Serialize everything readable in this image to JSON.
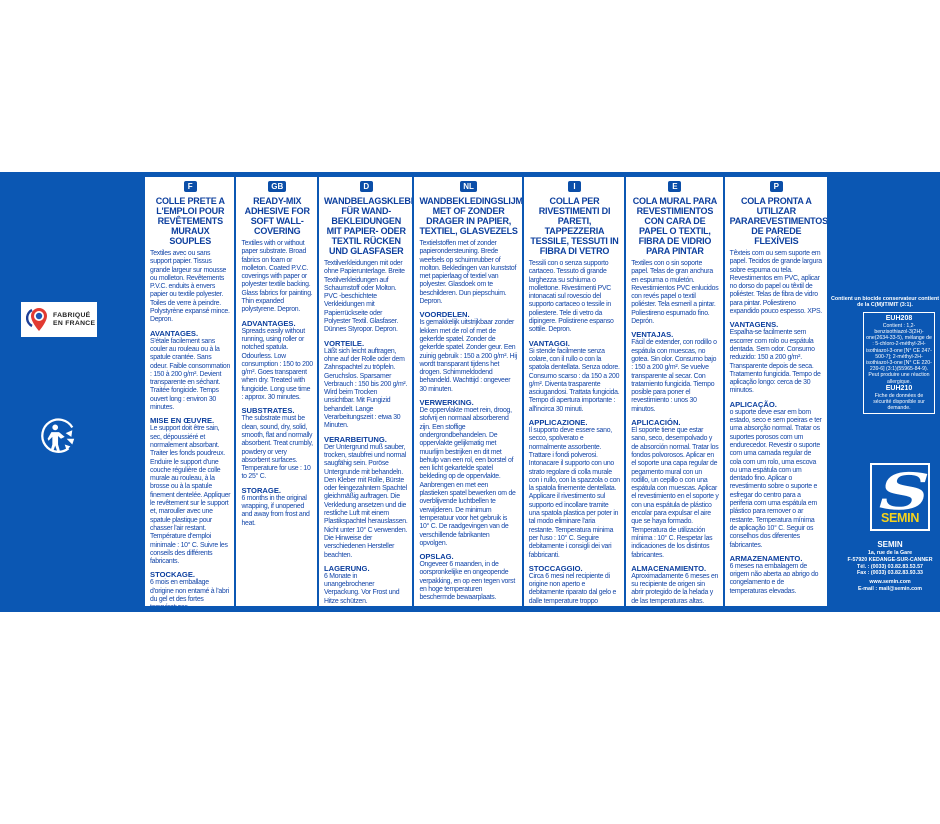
{
  "colors": {
    "brand_blue": "#0b57b3",
    "text_blue": "#1446a8",
    "logo_yellow": "#f6d21b"
  },
  "left_panel": {
    "made_in_label": "FABRIQUÉ\nEN FRANCE",
    "recycle_icon": "triman-recycle-icon"
  },
  "columns": [
    {
      "code": "F",
      "title": "COLLE PRETE A L'EMPLOI POUR REVÊTEMENTS MURAUX SOUPLES",
      "sections": [
        {
          "heading": "",
          "text": "Textiles avec ou sans support papier. Tissus grande largeur sur mousse ou molleton. Revêtements P.V.C. enduits à envers papier ou textile polyester. Toiles de verre à peindre. Polystyrène expansé mince. Depron."
        },
        {
          "heading": "AVANTAGES.",
          "text": "S'étale facilement sans couler au rouleau ou à la spatule crantée. Sans odeur. Faible consommation : 150 à 200 g/m². Devient transparente en séchant. Traitée fongicide. Temps ouvert long : environ 30 minutes."
        },
        {
          "heading": "MISE EN ŒUVRE.",
          "text": "Le support doit être sain, sec, dépoussiéré et normalement absorbant. Traiter les fonds poudreux. Enduire le support d'une couche régulière de colle murale au rouleau, à la brosse ou à la spatule finement dentelée. Appliquer le revêtement sur le support et, marouller avec une spatule plastique pour chasser l'air restant. Température d'emploi minimale : 10° C. Suivre les conseils des différents fabricants."
        },
        {
          "heading": "STOCKAGE.",
          "text": "6 mois en emballage d'origine non entamé à l'abri du gel et des fortes températures."
        }
      ]
    },
    {
      "code": "GB",
      "title": "READY-MIX ADHESIVE FOR SOFT WALL-COVERING",
      "sections": [
        {
          "heading": "",
          "text": "Textiles with or without paper substrate. Broad fabrics on foam or molleton. Coated P.V.C. coverings with paper or polyester textile backing. Glass fabrics for painting. Thin expanded polystyrene. Depron."
        },
        {
          "heading": "ADVANTAGES.",
          "text": "Spreads easily without running, using roller or notched spatula. Odourless. Low consumption : 150 to 200 g/m². Goes transparent when dry. Treated with fungicide. Long use time : approx. 30 minutes."
        },
        {
          "heading": "SUBSTRATES.",
          "text": "The substrate must be clean, sound, dry, solid, smooth, flat and normally absorbent. Treat crumbly, powdery or very absorbent surfaces. Temperature for use : 10 to 25° C."
        },
        {
          "heading": "STORAGE.",
          "text": "6 months in the original wrapping, if unopened and away from frost and heat."
        }
      ]
    },
    {
      "code": "D",
      "title": "WANDBELAGSKLEBER FÜR WAND-BEKLEIDUNGEN MIT PAPIER- ODER TEXTIL RÜCKEN UND GLASFASER",
      "sections": [
        {
          "heading": "",
          "text": "Textilverkleidungen mit oder ohne Papierunterlage. Breite Textilverkleidungen auf Schaumstoff oder Molton. PVC -beschichtete Verkleidungen mit Papierrückseite oder Polyester Textil. Glasfaser. Dünnes Styropor. Depron."
        },
        {
          "heading": "VORTEILE.",
          "text": "Läßt sich leicht auftragen, ohne auf der Rolle oder dem Zahnspachtel zu tröpfeln. Geruchslos. Sparsamer Verbrauch : 150 bis 200 g/m². Wird beim Trocken unsichtbar. Mit Fungizid behandelt. Lange Verarbeitungszeit : etwa 30 Minuten."
        },
        {
          "heading": "VERARBEITUNG.",
          "text": "Der Untergrund muß sauber, trocken, staubfrei und normal saugfähig sein. Poröse Untergrunde mit behandeln. Den Kleber mit Rolle, Bürste oder feingezahntem Spachtel gleichmäßig auftragen. Die Verkledung ansetzen und die restliche Luft mit einem Plastikspachtel herauslassen. Nicht unter 10° C verwenden. Die Hinweise der verschiedenen Hersteller beachten."
        },
        {
          "heading": "LAGERUNG.",
          "text": "6 Monate in unangebrochener Verpackung. Vor Frost und Hitze schützen."
        }
      ]
    },
    {
      "code": "NL",
      "title": "WANDBEKLEDINGSLIJM MET OF ZONDER DRAGER IN PAPIER, TEXTIEL, GLASVEZELS",
      "sections": [
        {
          "heading": "",
          "text": "Textielstoffen met of zonder papierondersteuning. Brede weefsels op schuimrubber of molton. Bekledingen van kunststof met papierlaag of textiel van polyester. Glasdoek om te beschilderen. Dun piepschuim. Depron."
        },
        {
          "heading": "VOORDELEN.",
          "text": "Is gemakkelijk uitstrijkbaar zonder lekken met de rol of met de gekerfde spatel. Zonder de gekerfde spatel. Zonder geur. Een zuinig gebruik : 150 a 200 g/m². Hij wordt transparant tijdens het drogen. Schimmeldodend behandeld. Wachttijd : ongeveer 30 minuten."
        },
        {
          "heading": "VERWERKING.",
          "text": "De oppervlakte moet rein, droog, stofvrij en normaal absorberend zijn. Een stoffige ondergrondbehandelen. De oppervlakte gelijkmatig met muurlijm bestrijken en dit met behulp van een rol, een borstel of een licht gekartelde spatel bekleding op de oppervlakte. Aanbrengen en met een plastieken spatel bewerken om de overblijvende luchtbellen te verwijderen. De minimum temperatuur voor het gebruik is 10° C. De raadgevingen van de verschillende fabrikanten opvolgen."
        },
        {
          "heading": "OPSLAG.",
          "text": "Ongeveer 6 maanden, in de oorspronkelijke en ongeopende verpakking, en op een tegen vorst en hoge temperaturen beschermde bewaarplaats."
        }
      ]
    },
    {
      "code": "I",
      "title": "COLLA PER RIVESTIMENTI DI PARETI, TAPPEZZERIA TESSILE, TESSUTI IN FIBRA DI VETRO",
      "sections": [
        {
          "heading": "",
          "text": "Tessili con o senza supporto cartaceo. Tessuto di grande larghezza su schiuma o mollettone. Rivestimenti PVC intonacati sul rovescio del supporto cartaceo o tessile in poliestere. Tele di vetro da dipingere. Polistirene espanso sottile. Depron."
        },
        {
          "heading": "VANTAGGI.",
          "text": "Si stende facilmente senza colare, con il rullo o con la spatola dentellata. Senza odore. Consumo scarso : da 150 a 200 g/m². Diventa trasparente asciugandosi. Trattata fungicida. Tempo di apertura importante : all'incirca 30 minuti."
        },
        {
          "heading": "APPLICAZIONE.",
          "text": "Il supporto deve essere sano, secco, spolverato e normalmente assorbente. Trattare i fondi polverosi. Intonacare il supporto con uno strato regolare di colla murale con i rullo, con la spazzola o con la spatola finemente dentellata. Applicare il rivestimento sul supporto ed incollare tramite una spatola plastica per poter in tal modo eliminare l'aria restante. Temperatura minima per l'uso : 10° C. Seguire debitamente i consigli dei vari fabbricanti."
        },
        {
          "heading": "STOCCAGGIO.",
          "text": "Circa 6 mesi nel recipiente di origine non aperto e debitamente riparato dal gelo e dalle temperature troppo elevate."
        }
      ]
    },
    {
      "code": "E",
      "title": "COLA MURAL PARA REVESTIMIENTOS CON CARA DE PAPEL O TEXTIL, FIBRA DE VIDRIO PARA PINTAR",
      "sections": [
        {
          "heading": "",
          "text": "Textiles con o sin soporte papel. Telas de gran anchura en espuma o muletón. Revestimientos PVC enlucidos con revés papel o textil poliéster. Tela esmeril a pintar. Poliestireno espumado fino. Deprón."
        },
        {
          "heading": "VENTAJAS.",
          "text": "Fácil de extender, con rodillo o espátula con muescas, no gotea. Sin olor. Consumo bajo : 150 a 200 g/m². Se vuelve transparente al secar. Con tratamiento fungicida. Tiempo posible para poner el revestimiento : unos 30 minutos."
        },
        {
          "heading": "APLICACIÓN.",
          "text": "El soporte tiene que estar sano, seco, desempolvado y de absorción normal. Tratar los fondos polvorosos. Aplicar en el soporte una capa regular de pegamento mural con un rodillo, un cepillo o con una espátula con muescas. Aplicar el revestimiento en el soporte y con una espátula de plástico encolar para expulsar el aire que se haya formado. Temperatura de utilización mínima : 10° C. Respetar las indicaciones de los distintos fabricantes."
        },
        {
          "heading": "ALMACENAMIENTO.",
          "text": "Aproximadamente 6 meses en su recipiente de origen sin abrir protegido de la helada y de las temperaturas altas."
        }
      ]
    },
    {
      "code": "P",
      "title": "COLA PRONTA A UTILIZAR PARAREVESTIMENTOS DE PAREDE FLEXÍVEIS",
      "sections": [
        {
          "heading": "",
          "text": "Têxteis com ou sem suporte em papel. Tecidos de grande largura sobre espuma ou tela. Revestimentos em PVC, aplicar no dorso do papel ou têxtil de poliéster. Telas de fibra de vidro para pintar. Poliestireno expandido pouco espesso. XPS."
        },
        {
          "heading": "VANTAGENS.",
          "text": "Espalha-se facilmente sem escorrer com rolo ou espátula dentada. Sem odor. Consumo reduzido: 150 a 200 g/m². Transparente depois de seca. Tratamento fungicida. Tempo de aplicação longo: cerca de 30 minutos."
        },
        {
          "heading": "APLICAÇÃO.",
          "text": "o suporte deve esar em bom estado, seco e sem poeiras e ter uma absorção normal. Tratar os suportes porosos com um endurecedor. Revestir o suporte com uma camada regular de cola com um rolo, uma escova ou uma espátula com um dentado fino. Aplicar o revestimento sobre o suporte e esfregar do centro para a periferia com uma espátula em plástico para remover o ar restante. Temperatura mínima de aplicação 10° C. Seguir os conselhos dos diferentes fabricantes."
        },
        {
          "heading": "ARMAZENAMENTO.",
          "text": "6 meses na embalagem de origem não aberta ao abrigo do congelamento e de temperaturas elevadas."
        }
      ]
    }
  ],
  "hazard": {
    "intro": "Contient un biocide conservateur contient de la C(M)IT/MIT (3:1).",
    "euh208": "EUH208",
    "euh208_text": "Contient : 1,2-benzisothiazol-3(2H)-one(2634-33-5), mélange de : 5-chloro-2-méthyl-2H-isothiazol-3-one [N° CE 247-500-7]; 2-méthyl-2H-isothiazol-3-one [N° CE 220-239-6] (3:1)(55965-84-9). Peut produire une réaction allergique.",
    "euh210": "EUH210",
    "euh210_text": "Fiche de données de sécurité disponible sur demande."
  },
  "brand": {
    "logo_text": "SEMIN",
    "name": "SEMIN",
    "address1": "1a, rue de la Gare",
    "address2": "F-57920 KEDANGE-SUR-CANNER",
    "tel": "Tél. : (0033) 03.82.83.53.57",
    "fax": "Fax : (0033) 03.82.83.93.33",
    "web": "www.semin.com",
    "email": "E-mail : mail@semin.com"
  }
}
